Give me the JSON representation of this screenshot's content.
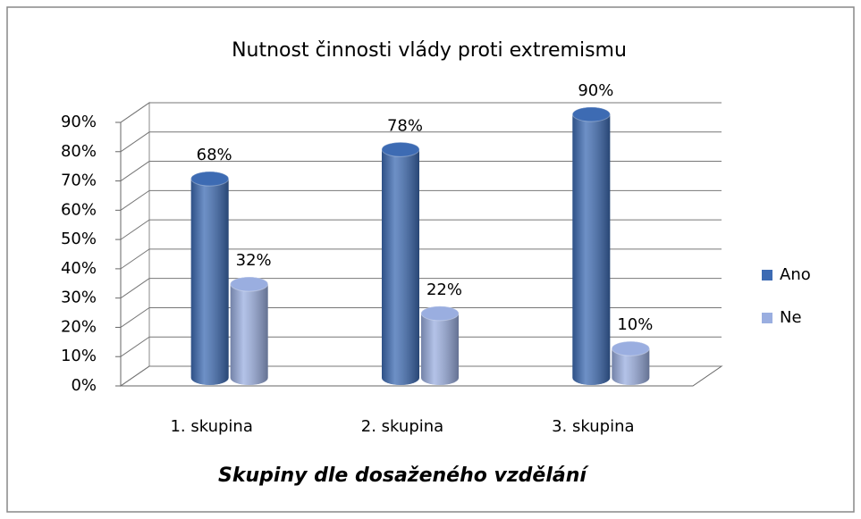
{
  "chart_data": {
    "type": "bar",
    "title": "Nutnost činnosti vlády proti extremismu",
    "x_label": "Skupiny dle dosaženého vzdělání",
    "categories": [
      "1. skupina",
      "2. skupina",
      "3.  skupina"
    ],
    "series": [
      {
        "name": "Ano",
        "color": "#3d6bb3",
        "values": [
          68,
          78,
          90
        ],
        "value_labels": [
          "68%",
          "78%",
          "90%"
        ]
      },
      {
        "name": "Ne",
        "color": "#9aaee0",
        "values": [
          32,
          22,
          10
        ],
        "value_labels": [
          "32%",
          "22%",
          "10%"
        ]
      }
    ],
    "ylim": [
      0,
      90
    ],
    "yticks": [
      {
        "value": 0,
        "label": "0%"
      },
      {
        "value": 10,
        "label": "10%"
      },
      {
        "value": 20,
        "label": "20%"
      },
      {
        "value": 30,
        "label": "30%"
      },
      {
        "value": 40,
        "label": "40%"
      },
      {
        "value": 50,
        "label": "50%"
      },
      {
        "value": 60,
        "label": "60%"
      },
      {
        "value": 70,
        "label": "70%"
      },
      {
        "value": 80,
        "label": "80%"
      },
      {
        "value": 90,
        "label": "90%"
      }
    ],
    "grid": true,
    "legend": "right"
  }
}
